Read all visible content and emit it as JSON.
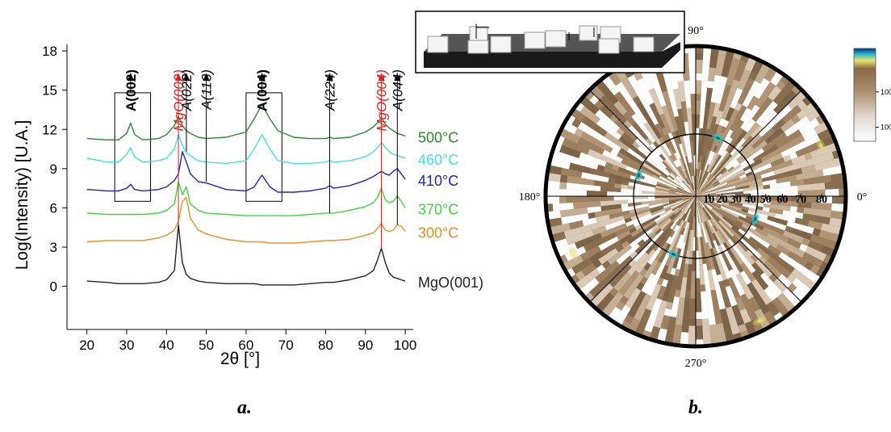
{
  "chart_data": [
    {
      "type": "line",
      "x_label": "2θ [°]",
      "y_label": "Log(Intensity) [U.A.]",
      "caption": "a.",
      "xlim": [
        15,
        102
      ],
      "ylim": [
        -3.3,
        18.5
      ],
      "xticks": [
        20,
        30,
        40,
        50,
        60,
        70,
        80,
        90,
        100
      ],
      "yticks": [
        0,
        3,
        6,
        9,
        12,
        15,
        18
      ],
      "x": [
        20,
        25,
        28,
        30,
        31,
        32,
        34,
        38,
        40,
        42,
        43,
        44,
        45,
        46,
        48,
        50,
        55,
        60,
        62,
        64,
        66,
        68,
        72,
        76,
        80,
        81,
        82,
        86,
        90,
        92,
        93,
        94,
        95,
        96,
        97,
        98,
        99,
        100
      ],
      "series": [
        {
          "name": "MgO(001)",
          "color": "#222222",
          "values": [
            0.4,
            0.3,
            0.2,
            0.2,
            0.2,
            0.2,
            0.2,
            0.3,
            0.5,
            1.2,
            4.7,
            1.8,
            0.9,
            0.6,
            0.4,
            0.3,
            0.2,
            0.2,
            0.2,
            0.1,
            0.1,
            0.1,
            0.1,
            0.2,
            0.3,
            0.3,
            0.3,
            0.5,
            0.8,
            1.2,
            2.0,
            2.9,
            1.8,
            1.0,
            0.7,
            0.6,
            0.5,
            0.4
          ]
        },
        {
          "name": "300°C",
          "color": "#f28a1e",
          "values": [
            3.4,
            3.5,
            3.5,
            3.5,
            3.5,
            3.5,
            3.5,
            3.7,
            3.9,
            4.3,
            5.0,
            6.5,
            6.8,
            5.2,
            4.3,
            4.0,
            3.6,
            3.4,
            3.4,
            3.4,
            3.3,
            3.3,
            3.3,
            3.4,
            3.5,
            3.5,
            3.5,
            3.6,
            3.9,
            4.1,
            4.4,
            4.8,
            4.3,
            4.2,
            4.3,
            4.7,
            4.6,
            4.2
          ]
        },
        {
          "name": "370°C",
          "color": "#3fd43a",
          "values": [
            5.6,
            5.5,
            5.5,
            5.5,
            5.5,
            5.5,
            5.5,
            5.6,
            5.8,
            6.3,
            8.0,
            7.0,
            7.6,
            6.3,
            5.8,
            5.6,
            5.5,
            5.4,
            5.4,
            5.4,
            5.4,
            5.4,
            5.4,
            5.5,
            5.6,
            5.6,
            5.6,
            5.8,
            6.1,
            6.4,
            6.8,
            7.5,
            6.6,
            6.4,
            6.5,
            6.9,
            6.5,
            6.0
          ]
        },
        {
          "name": "410°C",
          "color": "#2222cc",
          "values": [
            7.4,
            7.3,
            7.3,
            7.5,
            7.8,
            7.4,
            7.3,
            7.4,
            7.6,
            8.1,
            8.6,
            10.3,
            9.5,
            8.6,
            8.0,
            7.9,
            7.4,
            7.3,
            7.6,
            8.5,
            7.6,
            7.2,
            7.2,
            7.3,
            7.5,
            7.7,
            7.5,
            7.7,
            8.1,
            8.4,
            8.6,
            8.8,
            8.6,
            8.5,
            8.8,
            9.0,
            8.6,
            8.2
          ]
        },
        {
          "name": "460°C",
          "color": "#3fe0e8",
          "values": [
            9.8,
            9.5,
            9.5,
            10.1,
            10.6,
            9.9,
            9.5,
            9.6,
            9.8,
            10.5,
            11.6,
            10.8,
            10.2,
            10.0,
            9.6,
            9.5,
            9.4,
            9.6,
            10.5,
            11.6,
            10.5,
            9.6,
            9.4,
            9.4,
            9.5,
            9.6,
            9.5,
            9.6,
            9.9,
            10.3,
            10.6,
            11.0,
            10.6,
            10.3,
            10.1,
            10.0,
            9.9,
            9.8
          ]
        },
        {
          "name": "500°C",
          "color": "#2a8a2a",
          "values": [
            11.3,
            11.2,
            11.2,
            11.7,
            12.5,
            11.6,
            11.2,
            11.3,
            11.6,
            12.3,
            13.0,
            12.3,
            11.9,
            11.7,
            11.4,
            11.3,
            11.4,
            11.8,
            12.8,
            13.9,
            12.8,
            11.9,
            11.4,
            11.3,
            11.3,
            11.4,
            11.3,
            11.4,
            11.8,
            12.2,
            12.5,
            12.9,
            12.4,
            12.1,
            11.9,
            11.7,
            11.6,
            11.5
          ]
        }
      ],
      "annotations": [
        {
          "text": "A(002)",
          "x": 31,
          "y": 14.8,
          "style": "bold",
          "color": "#000000"
        },
        {
          "text": "MgO(002)",
          "x": 43,
          "y": 4.7,
          "style": "italic",
          "color": "#e02020"
        },
        {
          "text": "A(022)",
          "x": 45,
          "y": 10.3,
          "style": "italic",
          "color": "#000000"
        },
        {
          "text": "A(113)",
          "x": 50,
          "y": 8.0,
          "style": "italic",
          "color": "#000000"
        },
        {
          "text": "A(004)",
          "x": 64,
          "y": 14.8,
          "style": "bold",
          "color": "#000000"
        },
        {
          "text": "A(224)",
          "x": 81,
          "y": 5.6,
          "style": "italic",
          "color": "#000000"
        },
        {
          "text": "MgO(004)",
          "x": 94,
          "y": 2.9,
          "style": "italic",
          "color": "#e02020"
        },
        {
          "text": "A(044)",
          "x": 98,
          "y": 4.7,
          "style": "italic",
          "color": "#000000"
        }
      ],
      "highlight_boxes": [
        {
          "x": [
            27,
            36
          ],
          "y": [
            6.5,
            14.8
          ]
        },
        {
          "x": [
            60,
            69
          ],
          "y": [
            6.5,
            14.8
          ]
        }
      ]
    },
    {
      "type": "polar",
      "caption": "b.",
      "projection": "stereographic",
      "angle_ticks": [
        {
          "value": 0,
          "label": "0°"
        },
        {
          "value": 90,
          "label": "90°"
        },
        {
          "value": 180,
          "label": "180°"
        },
        {
          "value": 270,
          "label": "270°"
        }
      ],
      "psi_ticks": [
        10,
        20,
        30,
        40,
        50,
        60,
        70,
        80
      ],
      "reference_circle": 45,
      "poles": [
        {
          "phi": 69,
          "psi": 45,
          "color": "#1aa0c8"
        },
        {
          "phi": 160,
          "psi": 44,
          "color": "#1aa0c8"
        },
        {
          "phi": 249,
          "psi": 45,
          "color": "#1aa0c8"
        },
        {
          "phi": 339,
          "psi": 46,
          "color": "#1aa0c8"
        },
        {
          "phi": 22,
          "psi": 84,
          "color": "#e8e070"
        },
        {
          "phi": 205,
          "psi": 84,
          "color": "#e8e070"
        },
        {
          "phi": 297,
          "psi": 86,
          "color": "#e8e070"
        }
      ],
      "colorbar": {
        "scale": "log",
        "lim": [
          40,
          17000
        ],
        "ticks": [
          100,
          1000
        ]
      }
    }
  ]
}
